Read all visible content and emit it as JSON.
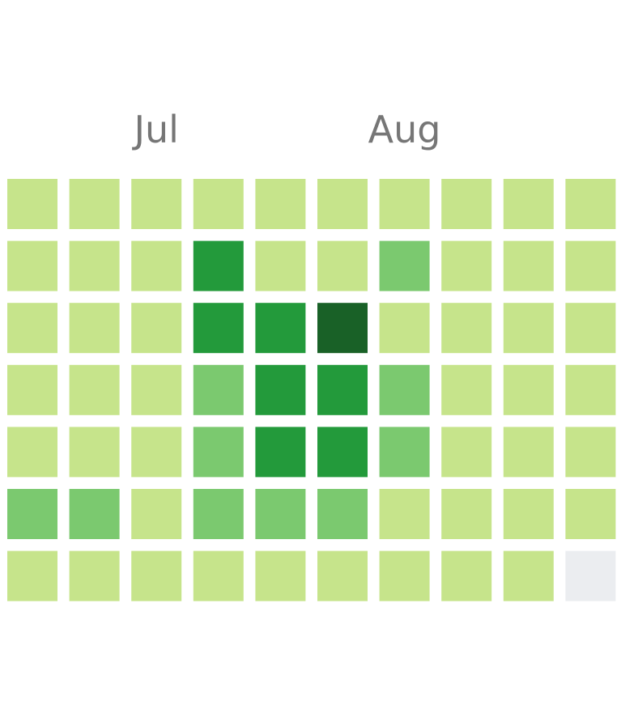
{
  "chart_data": {
    "type": "heatmap",
    "title": "",
    "month_labels": [
      {
        "label": "Jul",
        "week_index": 2
      },
      {
        "label": "Aug",
        "week_index": 6
      }
    ],
    "levels": {
      "empty": "#ebedf0",
      "1": "#c6e48b",
      "2": "#7bc96f",
      "3": "#239a3b",
      "4": "#196127"
    },
    "grid_rows": 7,
    "grid_cols": 10,
    "values": [
      [
        1,
        1,
        1,
        1,
        1,
        1,
        1,
        1,
        1,
        1
      ],
      [
        1,
        1,
        1,
        3,
        1,
        1,
        2,
        1,
        1,
        1
      ],
      [
        1,
        1,
        1,
        3,
        3,
        4,
        1,
        1,
        1,
        1
      ],
      [
        1,
        1,
        1,
        2,
        3,
        3,
        2,
        1,
        1,
        1
      ],
      [
        1,
        1,
        1,
        2,
        3,
        3,
        2,
        1,
        1,
        1
      ],
      [
        2,
        2,
        1,
        2,
        2,
        2,
        1,
        1,
        1,
        1
      ],
      [
        1,
        1,
        1,
        1,
        1,
        1,
        1,
        1,
        1,
        0
      ]
    ]
  }
}
